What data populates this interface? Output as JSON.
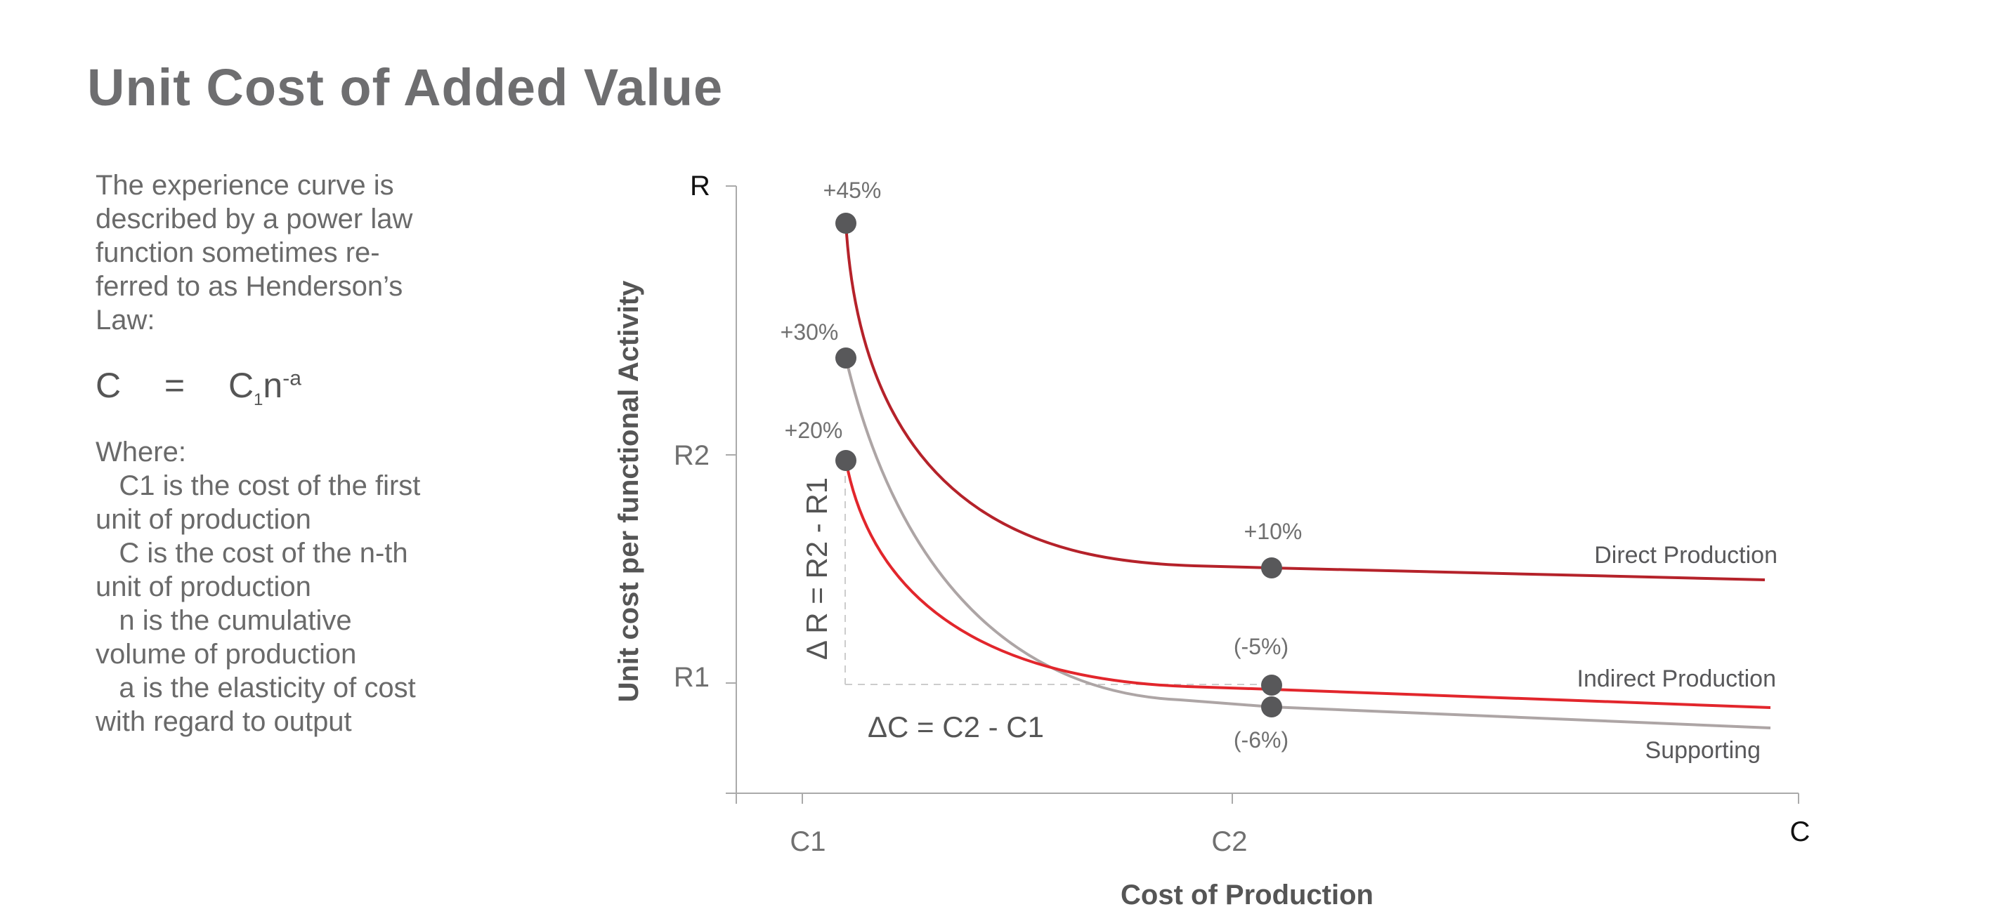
{
  "page": {
    "title": "Unit Cost of Added Value"
  },
  "description": {
    "lines": [
      "The experience curve is",
      "described by a power law",
      "function sometimes re-",
      "ferred to as Henderson’s",
      "Law:"
    ]
  },
  "formula": {
    "lhs": "C",
    "eq": "=",
    "rhs_base": "C",
    "rhs_sub": "1",
    "rhs_var": "n",
    "rhs_exp": "-a"
  },
  "where": {
    "heading": "Where:",
    "lines": [
      "   C1 is the cost of the first",
      "unit of production",
      "   C is the cost of the n-th",
      "unit of production",
      "   n is the cumulative",
      "volume of production",
      "   a is the elasticity of cost",
      "with regard to output"
    ]
  },
  "chart_data": {
    "type": "line",
    "xlabel": "Cost of Production",
    "ylabel": "Unit cost per functional Activity",
    "x_axis_end_label": "C",
    "y_axis_end_label": "R",
    "x_ticks": [
      "C1",
      "C2"
    ],
    "y_ticks": [
      "R2",
      "R1"
    ],
    "series": [
      {
        "name": "Direct Production",
        "color": "#b5222a",
        "points": [
          {
            "label": "+45%"
          },
          {
            "label": "+10%"
          }
        ]
      },
      {
        "name": "Indirect Production",
        "color": "#e2262c",
        "points": [
          {
            "label": "+20%"
          },
          {
            "label": "(-5%)"
          }
        ]
      },
      {
        "name": "Supporting",
        "color": "#ada5a5",
        "points": [
          {
            "label": "+30%"
          },
          {
            "label": "(-6%)"
          }
        ]
      }
    ],
    "annotations": {
      "delta_r": "Δ R = R2 - R1",
      "delta_c": "ΔC = C2 - C1"
    },
    "colors": {
      "axis": "#aaaaaa",
      "marker": "#58585a",
      "text": "#707070",
      "guide": "#cccccc"
    }
  }
}
